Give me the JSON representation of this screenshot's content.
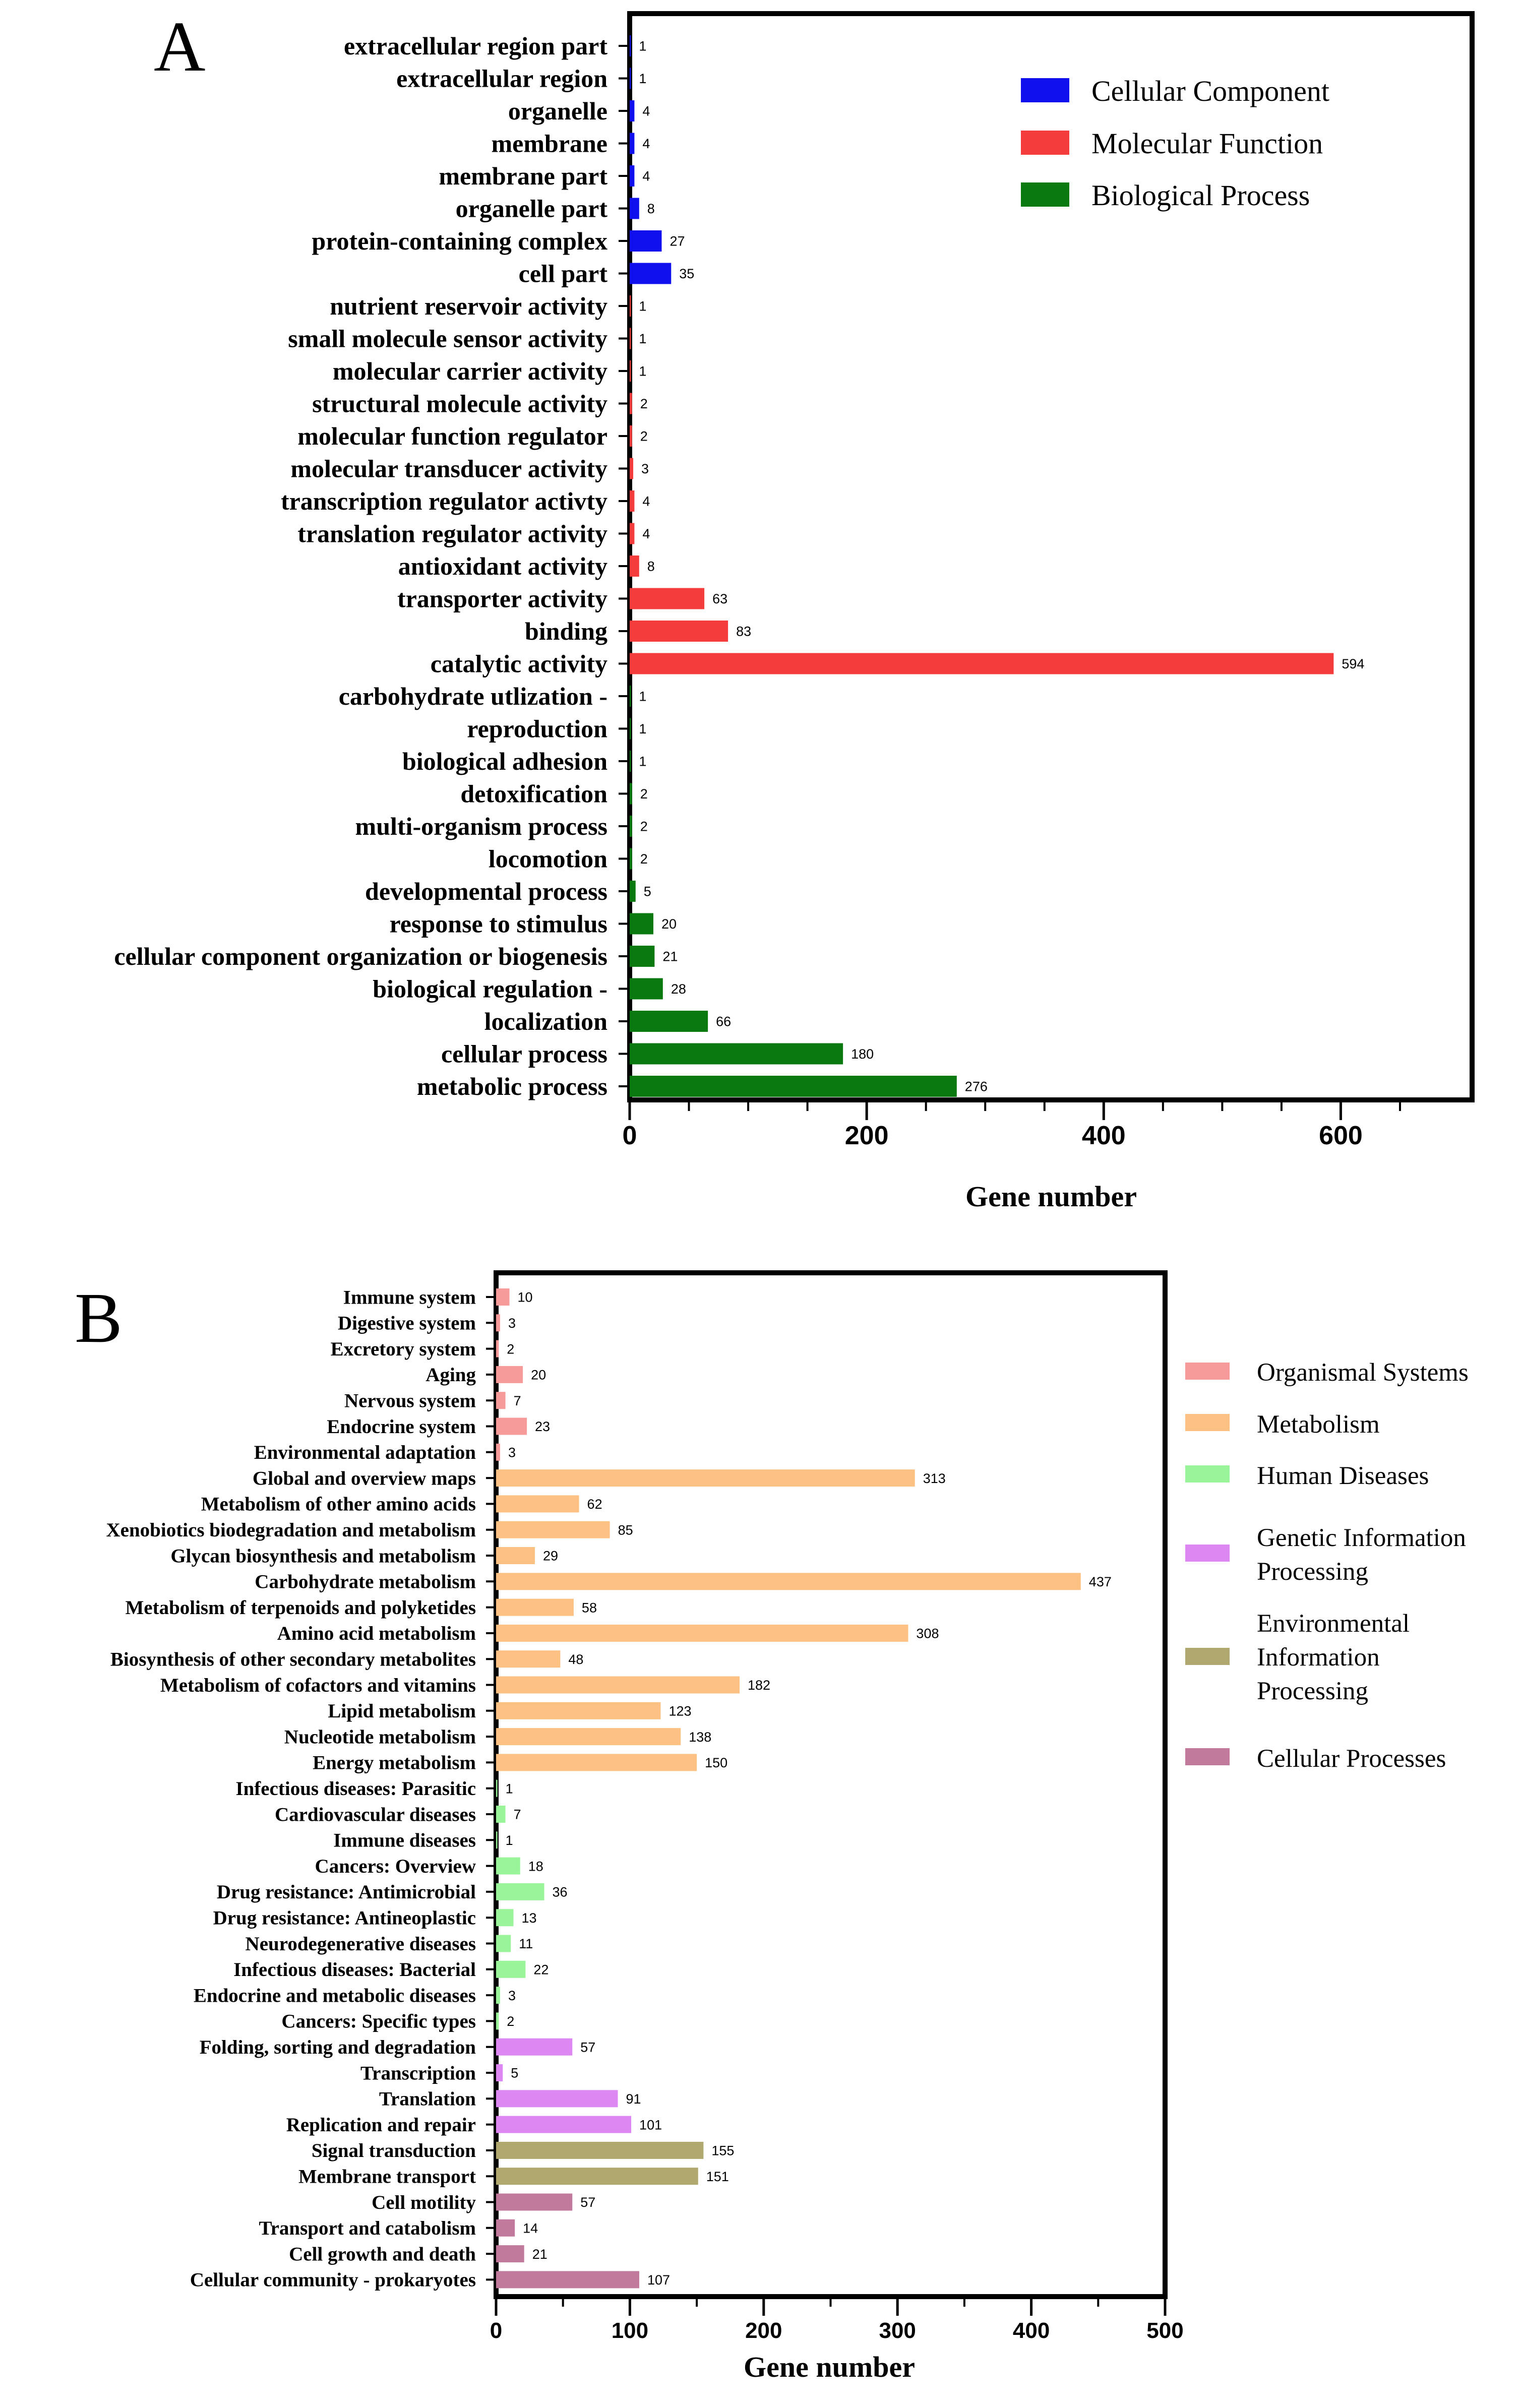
{
  "chart_data": [
    {
      "type": "bar",
      "orientation": "horizontal",
      "panel_label": "A",
      "xlabel": "Gene number",
      "xlim": [
        0,
        650
      ],
      "xticks": [
        0,
        200,
        400,
        600
      ],
      "grid": false,
      "legend_position": "top-right",
      "categories": [
        "extracellular region part",
        "extracellular region",
        "organelle",
        "membrane",
        "membrane part",
        "organelle part",
        "protein-containing complex",
        "cell part",
        "nutrient reservoir activity",
        "small molecule sensor activity",
        "molecular carrier activity",
        "structural molecule activity",
        "molecular function regulator",
        "molecular transducer activity",
        "transcription regulator activty",
        "translation regulator activity",
        "antioxidant activity",
        "transporter activity",
        "binding",
        "catalytic activity",
        "carbohydrate utlization -",
        "reproduction",
        "biological adhesion",
        "detoxification",
        "multi-organism process",
        "locomotion",
        "developmental process",
        "response to stimulus",
        "cellular component organization or biogenesis",
        "biological regulation -",
        "localization",
        "cellular process",
        "metabolic process"
      ],
      "values": [
        1,
        1,
        4,
        4,
        4,
        8,
        27,
        35,
        1,
        1,
        1,
        2,
        2,
        3,
        4,
        4,
        8,
        63,
        83,
        594,
        1,
        1,
        1,
        2,
        2,
        2,
        5,
        20,
        21,
        28,
        66,
        180,
        276
      ],
      "groups": [
        0,
        0,
        0,
        0,
        0,
        0,
        0,
        0,
        1,
        1,
        1,
        1,
        1,
        1,
        1,
        1,
        1,
        1,
        1,
        1,
        2,
        2,
        2,
        2,
        2,
        2,
        2,
        2,
        2,
        2,
        2,
        2,
        2
      ],
      "series": [
        {
          "name": "Cellular Component",
          "color": "#1010ee"
        },
        {
          "name": "Molecular Function",
          "color": "#f43c3c"
        },
        {
          "name": "Biological Process",
          "color": "#0a7a10"
        }
      ]
    },
    {
      "type": "bar",
      "orientation": "horizontal",
      "panel_label": "B",
      "xlabel": "Gene number",
      "xlim": [
        0,
        500
      ],
      "xticks": [
        0,
        100,
        200,
        300,
        400,
        500
      ],
      "grid": false,
      "legend_position": "right",
      "categories": [
        "Immune system",
        "Digestive system",
        "Excretory system",
        "Aging",
        "Nervous system",
        "Endocrine system",
        "Environmental adaptation",
        "Global and overview maps",
        "Metabolism of other amino acids",
        "Xenobiotics biodegradation and metabolism",
        "Glycan biosynthesis and metabolism",
        "Carbohydrate metabolism",
        "Metabolism of terpenoids and polyketides",
        "Amino acid metabolism",
        "Biosynthesis of other secondary metabolites",
        "Metabolism of cofactors and vitamins",
        "Lipid metabolism",
        "Nucleotide metabolism",
        "Energy metabolism",
        "Infectious diseases: Parasitic",
        "Cardiovascular diseases",
        "Immune diseases",
        "Cancers: Overview",
        "Drug resistance: Antimicrobial",
        "Drug resistance: Antineoplastic",
        "Neurodegenerative diseases",
        "Infectious diseases: Bacterial",
        "Endocrine and metabolic diseases",
        "Cancers: Specific types",
        "Folding, sorting and degradation",
        "Transcription",
        "Translation",
        "Replication and repair",
        "Signal transduction",
        "Membrane transport",
        "Cell motility",
        "Transport and catabolism",
        "Cell growth and death",
        "Cellular community - prokaryotes"
      ],
      "values": [
        10,
        3,
        2,
        20,
        7,
        23,
        3,
        313,
        62,
        85,
        29,
        437,
        58,
        308,
        48,
        182,
        123,
        138,
        150,
        1,
        7,
        1,
        18,
        36,
        13,
        11,
        22,
        3,
        2,
        57,
        5,
        91,
        101,
        155,
        151,
        57,
        14,
        21,
        107
      ],
      "groups": [
        0,
        0,
        0,
        0,
        0,
        0,
        0,
        1,
        1,
        1,
        1,
        1,
        1,
        1,
        1,
        1,
        1,
        1,
        1,
        2,
        2,
        2,
        2,
        2,
        2,
        2,
        2,
        2,
        2,
        3,
        3,
        3,
        3,
        4,
        4,
        5,
        5,
        5,
        5
      ],
      "series": [
        {
          "name": "Organismal Systems",
          "color": "#f79a9a"
        },
        {
          "name": "Metabolism",
          "color": "#fdc283"
        },
        {
          "name": "Human Diseases",
          "color": "#9af59a"
        },
        {
          "name": "Genetic Information Processing",
          "color": "#dd88f2"
        },
        {
          "name": "Environmental Information Processing",
          "color": "#b0a86e"
        },
        {
          "name": "Cellular Processes",
          "color": "#c27a9c"
        }
      ]
    }
  ]
}
